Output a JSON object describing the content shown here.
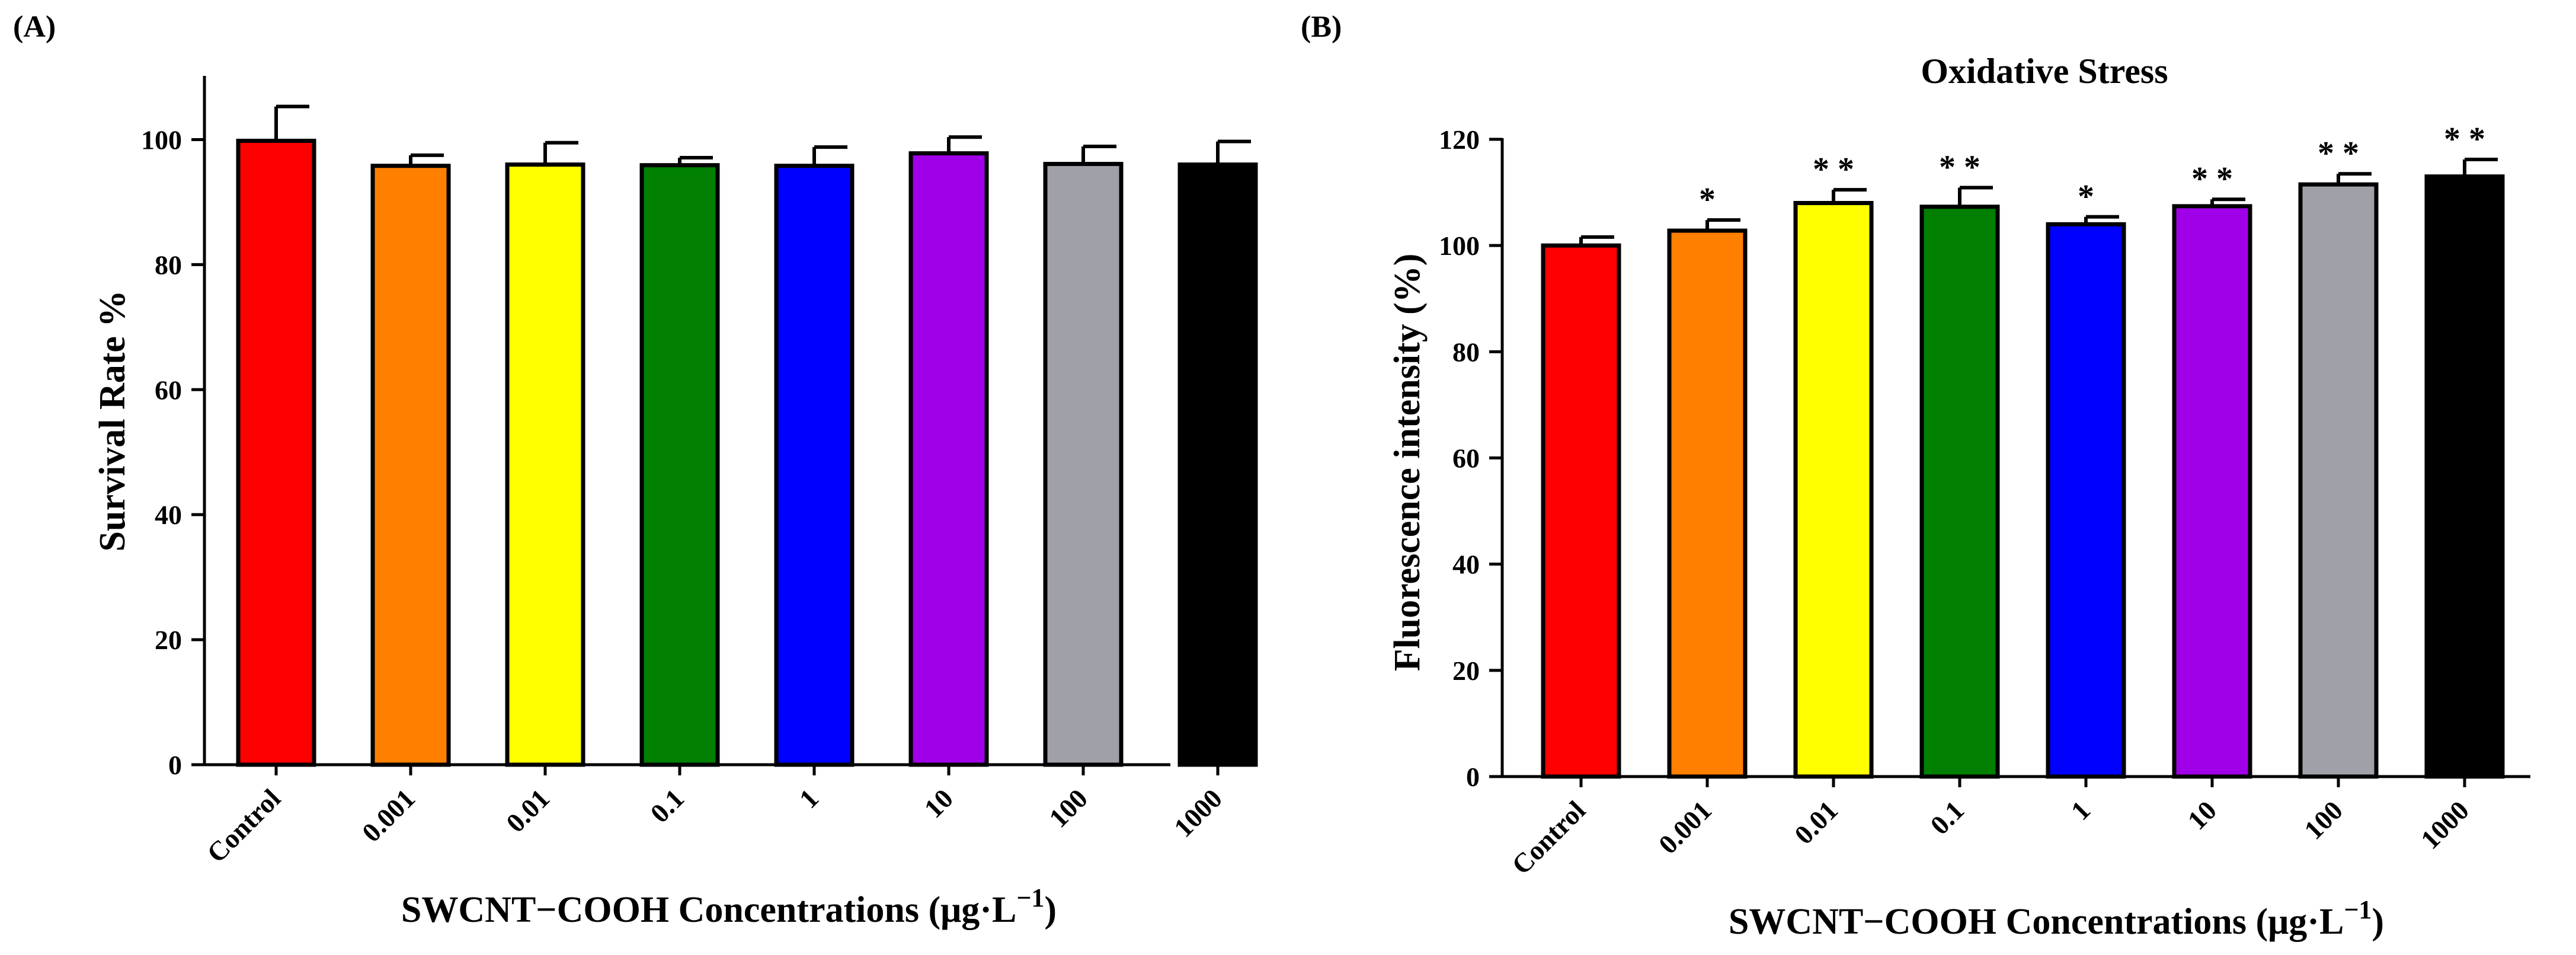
{
  "chart_data": [
    {
      "panel_label": "(A)",
      "type": "bar",
      "title": "",
      "xlabel": "SWCNT−COOH Concentrations (μg·L",
      "xlabel_superscript": "−1",
      "xlabel_close": ")",
      "ylabel": "Survival Rate %",
      "ylim": [
        0,
        110
      ],
      "yticks": [
        0,
        20,
        40,
        60,
        80,
        100
      ],
      "categories": [
        "Control",
        "0.001",
        "0.01",
        "0.1",
        "1",
        "10",
        "100",
        "1000"
      ],
      "values": [
        99.8,
        95.8,
        96.0,
        95.9,
        95.8,
        97.8,
        96.1,
        96.0
      ],
      "errors": [
        5.5,
        1.7,
        3.5,
        1.2,
        3.0,
        2.6,
        2.8,
        3.7
      ],
      "significance": [
        "",
        "",
        "",
        "",
        "",
        "",
        "",
        ""
      ],
      "colors": [
        "#ff0000",
        "#ff7f00",
        "#ffff00",
        "#007f00",
        "#0000ff",
        "#a000e8",
        "#a0a0a8",
        "#000000"
      ]
    },
    {
      "panel_label": "(B)",
      "type": "bar",
      "title": "Oxidative Stress",
      "xlabel": "SWCNT−COOH Concentrations (μg·L",
      "xlabel_superscript": "−1",
      "xlabel_close": ")",
      "ylabel": "Fluorescence intensity (%)",
      "ylim": [
        0,
        120
      ],
      "yticks": [
        0,
        20,
        40,
        60,
        80,
        100,
        120
      ],
      "categories": [
        "Control",
        "0.001",
        "0.01",
        "0.1",
        "1",
        "10",
        "100",
        "1000"
      ],
      "values": [
        100.0,
        102.8,
        108.0,
        107.3,
        104.0,
        107.4,
        111.5,
        113.0
      ],
      "errors": [
        1.6,
        2.0,
        2.5,
        3.6,
        1.4,
        1.3,
        2.0,
        3.2
      ],
      "significance": [
        "",
        "*",
        "* *",
        "* *",
        "*",
        "* *",
        "* *",
        "* *"
      ],
      "colors": [
        "#ff0000",
        "#ff7f00",
        "#ffff00",
        "#007f00",
        "#0000ff",
        "#a000e8",
        "#a0a0a8",
        "#000000"
      ]
    }
  ]
}
